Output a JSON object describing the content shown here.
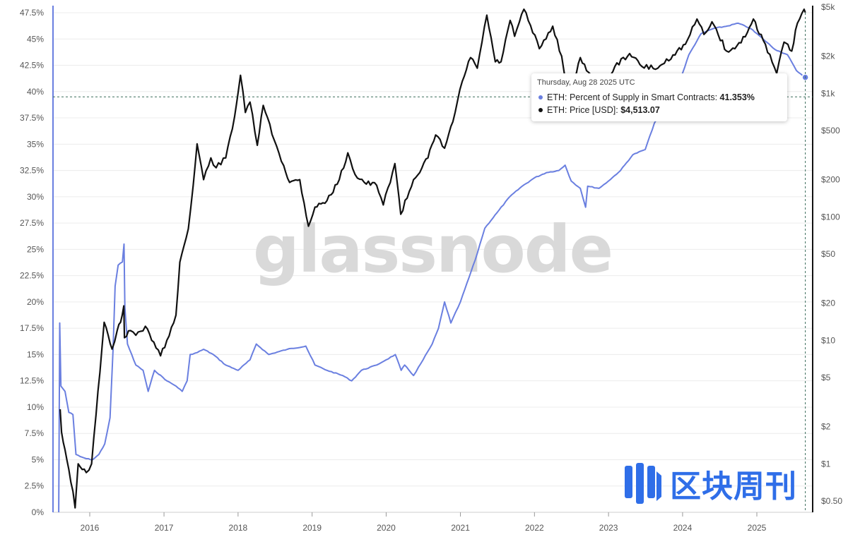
{
  "chart_data": {
    "type": "line",
    "watermark": "glassnode",
    "x_ticks": [
      "2016",
      "2017",
      "2018",
      "2019",
      "2020",
      "2021",
      "2022",
      "2023",
      "2024",
      "2025"
    ],
    "y_left_ticks": [
      "0%",
      "2.5%",
      "5%",
      "7.5%",
      "10%",
      "12.5%",
      "15%",
      "17.5%",
      "20%",
      "22.5%",
      "25%",
      "27.5%",
      "30%",
      "32.5%",
      "35%",
      "37.5%",
      "40%",
      "42.5%",
      "45%",
      "47.5%"
    ],
    "y_left_range": [
      0,
      47.5
    ],
    "y_right_ticks": [
      "$0.50",
      "$1",
      "$2",
      "$5",
      "$10",
      "$20",
      "$50",
      "$100",
      "$200",
      "$500",
      "$1k",
      "$2k",
      "$5k"
    ],
    "y_right_scale": "log",
    "y_right_range": [
      0.4,
      5000
    ],
    "series": [
      {
        "name": "ETH: Percent of Supply in Smart Contracts",
        "axis": "left",
        "color": "#6a7fe0",
        "points": [
          [
            "2015-08-01",
            0
          ],
          [
            "2015-08-06",
            18
          ],
          [
            "2015-08-12",
            12
          ],
          [
            "2015-09-01",
            11.5
          ],
          [
            "2015-09-20",
            9.5
          ],
          [
            "2015-10-10",
            9.3
          ],
          [
            "2015-10-25",
            5.5
          ],
          [
            "2015-11-15",
            5.3
          ],
          [
            "2015-12-15",
            5.1
          ],
          [
            "2016-01-15",
            5.0
          ],
          [
            "2016-02-15",
            5.5
          ],
          [
            "2016-03-15",
            6.5
          ],
          [
            "2016-04-10",
            9.0
          ],
          [
            "2016-04-25",
            15.5
          ],
          [
            "2016-05-05",
            21.5
          ],
          [
            "2016-05-20",
            23.5
          ],
          [
            "2016-06-10",
            23.8
          ],
          [
            "2016-06-18",
            25.5
          ],
          [
            "2016-06-22",
            19.5
          ],
          [
            "2016-07-05",
            16.0
          ],
          [
            "2016-08-15",
            14.0
          ],
          [
            "2016-09-20",
            13.5
          ],
          [
            "2016-10-15",
            11.5
          ],
          [
            "2016-11-15",
            13.5
          ],
          [
            "2017-01-15",
            12.5
          ],
          [
            "2017-03-01",
            12.0
          ],
          [
            "2017-04-01",
            11.5
          ],
          [
            "2017-04-25",
            12.5
          ],
          [
            "2017-05-10",
            15.0
          ],
          [
            "2017-06-15",
            15.2
          ],
          [
            "2017-07-15",
            15.5
          ],
          [
            "2017-09-01",
            15.0
          ],
          [
            "2017-11-01",
            14.0
          ],
          [
            "2018-01-01",
            13.5
          ],
          [
            "2018-03-01",
            14.5
          ],
          [
            "2018-04-01",
            16.0
          ],
          [
            "2018-06-01",
            15.0
          ],
          [
            "2018-09-01",
            15.5
          ],
          [
            "2018-12-01",
            15.8
          ],
          [
            "2019-01-15",
            14.0
          ],
          [
            "2019-03-15",
            13.5
          ],
          [
            "2019-06-01",
            13.0
          ],
          [
            "2019-07-15",
            12.5
          ],
          [
            "2019-09-01",
            13.5
          ],
          [
            "2019-11-15",
            14.0
          ],
          [
            "2020-01-01",
            14.5
          ],
          [
            "2020-02-15",
            15.0
          ],
          [
            "2020-03-15",
            13.5
          ],
          [
            "2020-04-01",
            14.0
          ],
          [
            "2020-05-15",
            13.0
          ],
          [
            "2020-07-01",
            14.5
          ],
          [
            "2020-08-15",
            16.0
          ],
          [
            "2020-09-15",
            17.5
          ],
          [
            "2020-10-15",
            20.0
          ],
          [
            "2020-11-15",
            18.0
          ],
          [
            "2021-01-01",
            20.0
          ],
          [
            "2021-03-15",
            24.0
          ],
          [
            "2021-05-01",
            27.0
          ],
          [
            "2021-07-01",
            28.5
          ],
          [
            "2021-09-01",
            30.0
          ],
          [
            "2021-11-01",
            31.0
          ],
          [
            "2022-01-01",
            31.8
          ],
          [
            "2022-03-01",
            32.3
          ],
          [
            "2022-05-01",
            32.5
          ],
          [
            "2022-06-01",
            33.0
          ],
          [
            "2022-07-01",
            31.5
          ],
          [
            "2022-08-15",
            30.8
          ],
          [
            "2022-09-10",
            29.0
          ],
          [
            "2022-09-20",
            31.0
          ],
          [
            "2022-11-15",
            30.8
          ],
          [
            "2023-01-01",
            31.5
          ],
          [
            "2023-03-01",
            32.5
          ],
          [
            "2023-05-01",
            34.0
          ],
          [
            "2023-07-01",
            34.5
          ],
          [
            "2023-08-15",
            37.0
          ],
          [
            "2023-10-01",
            38.5
          ],
          [
            "2023-12-01",
            40.0
          ],
          [
            "2024-02-01",
            43.5
          ],
          [
            "2024-04-01",
            45.5
          ],
          [
            "2024-06-01",
            46.0
          ],
          [
            "2024-08-01",
            46.2
          ],
          [
            "2024-10-01",
            46.5
          ],
          [
            "2024-12-01",
            46.0
          ],
          [
            "2025-02-01",
            45.0
          ],
          [
            "2025-04-01",
            44.0
          ],
          [
            "2025-06-01",
            43.5
          ],
          [
            "2025-07-15",
            42.0
          ],
          [
            "2025-08-28",
            41.353
          ]
        ]
      },
      {
        "name": "ETH: Price [USD]",
        "axis": "right",
        "color": "#111111",
        "points": [
          [
            "2015-08-08",
            2.77
          ],
          [
            "2015-08-15",
            1.8
          ],
          [
            "2015-09-01",
            1.3
          ],
          [
            "2015-09-20",
            0.9
          ],
          [
            "2015-10-10",
            0.6
          ],
          [
            "2015-10-21",
            0.44
          ],
          [
            "2015-11-05",
            1.0
          ],
          [
            "2015-11-25",
            0.9
          ],
          [
            "2015-12-15",
            0.85
          ],
          [
            "2016-01-10",
            1.0
          ],
          [
            "2016-02-01",
            2.5
          ],
          [
            "2016-02-20",
            5.5
          ],
          [
            "2016-03-12",
            14.0
          ],
          [
            "2016-04-01",
            11.0
          ],
          [
            "2016-04-20",
            8.5
          ],
          [
            "2016-05-15",
            12.0
          ],
          [
            "2016-06-01",
            14.0
          ],
          [
            "2016-06-17",
            19.0
          ],
          [
            "2016-06-20",
            10.5
          ],
          [
            "2016-07-20",
            12.0
          ],
          [
            "2016-08-15",
            11.0
          ],
          [
            "2016-10-01",
            13.0
          ],
          [
            "2016-11-01",
            10.0
          ],
          [
            "2016-12-15",
            7.5
          ],
          [
            "2017-01-15",
            10.0
          ],
          [
            "2017-03-01",
            16.0
          ],
          [
            "2017-03-20",
            43.0
          ],
          [
            "2017-05-01",
            80.0
          ],
          [
            "2017-05-25",
            180.0
          ],
          [
            "2017-06-13",
            390.0
          ],
          [
            "2017-07-15",
            200.0
          ],
          [
            "2017-08-20",
            300.0
          ],
          [
            "2017-09-15",
            250.0
          ],
          [
            "2017-11-01",
            300.0
          ],
          [
            "2017-12-15",
            650.0
          ],
          [
            "2018-01-13",
            1400.0
          ],
          [
            "2018-02-06",
            700.0
          ],
          [
            "2018-03-01",
            850.0
          ],
          [
            "2018-04-06",
            380.0
          ],
          [
            "2018-05-05",
            800.0
          ],
          [
            "2018-06-28",
            420.0
          ],
          [
            "2018-08-14",
            260.0
          ],
          [
            "2018-09-12",
            190.0
          ],
          [
            "2018-11-01",
            200.0
          ],
          [
            "2018-12-14",
            84.0
          ],
          [
            "2019-01-15",
            120.0
          ],
          [
            "2019-03-15",
            135.0
          ],
          [
            "2019-05-15",
            200.0
          ],
          [
            "2019-06-26",
            330.0
          ],
          [
            "2019-08-01",
            220.0
          ],
          [
            "2019-09-15",
            190.0
          ],
          [
            "2019-11-15",
            180.0
          ],
          [
            "2019-12-18",
            125.0
          ],
          [
            "2020-02-13",
            270.0
          ],
          [
            "2020-03-13",
            105.0
          ],
          [
            "2020-05-15",
            200.0
          ],
          [
            "2020-07-25",
            300.0
          ],
          [
            "2020-09-01",
            460.0
          ],
          [
            "2020-10-15",
            360.0
          ],
          [
            "2020-11-25",
            590.0
          ],
          [
            "2021-01-10",
            1250.0
          ],
          [
            "2021-02-20",
            1950.0
          ],
          [
            "2021-03-25",
            1600.0
          ],
          [
            "2021-05-11",
            4300.0
          ],
          [
            "2021-06-22",
            1800.0
          ],
          [
            "2021-07-20",
            1800.0
          ],
          [
            "2021-09-03",
            3900.0
          ],
          [
            "2021-09-25",
            2900.0
          ],
          [
            "2021-11-10",
            4800.0
          ],
          [
            "2022-01-25",
            2300.0
          ],
          [
            "2022-04-01",
            3500.0
          ],
          [
            "2022-05-15",
            2000.0
          ],
          [
            "2022-06-18",
            900.0
          ],
          [
            "2022-08-15",
            1950.0
          ],
          [
            "2022-10-15",
            1300.0
          ],
          [
            "2022-12-15",
            1200.0
          ],
          [
            "2023-02-01",
            1650.0
          ],
          [
            "2023-04-15",
            2100.0
          ],
          [
            "2023-06-15",
            1650.0
          ],
          [
            "2023-09-01",
            1600.0
          ],
          [
            "2023-11-15",
            2050.0
          ],
          [
            "2024-01-15",
            2500.0
          ],
          [
            "2024-03-12",
            4000.0
          ],
          [
            "2024-04-15",
            3000.0
          ],
          [
            "2024-05-25",
            3800.0
          ],
          [
            "2024-08-05",
            2200.0
          ],
          [
            "2024-09-15",
            2300.0
          ],
          [
            "2024-11-15",
            3100.0
          ],
          [
            "2024-12-15",
            4000.0
          ],
          [
            "2025-02-01",
            2700.0
          ],
          [
            "2025-04-09",
            1450.0
          ],
          [
            "2025-05-15",
            2600.0
          ],
          [
            "2025-06-22",
            2200.0
          ],
          [
            "2025-07-20",
            3700.0
          ],
          [
            "2025-08-22",
            4800.0
          ],
          [
            "2025-08-28",
            4513.07
          ]
        ]
      }
    ],
    "crosshair_y_left": 39.5,
    "tooltip": {
      "date": "Thursday, Aug 28 2025 UTC",
      "rows": [
        {
          "label": "ETH: Percent of Supply in Smart Contracts",
          "value": "41.353%",
          "color": "#6a7fe0"
        },
        {
          "label": "ETH: Price [USD]",
          "value": "$4,513.07",
          "color": "#111111"
        }
      ]
    }
  },
  "brand": {
    "text": "区块周刊",
    "color": "#2f6ee8"
  }
}
